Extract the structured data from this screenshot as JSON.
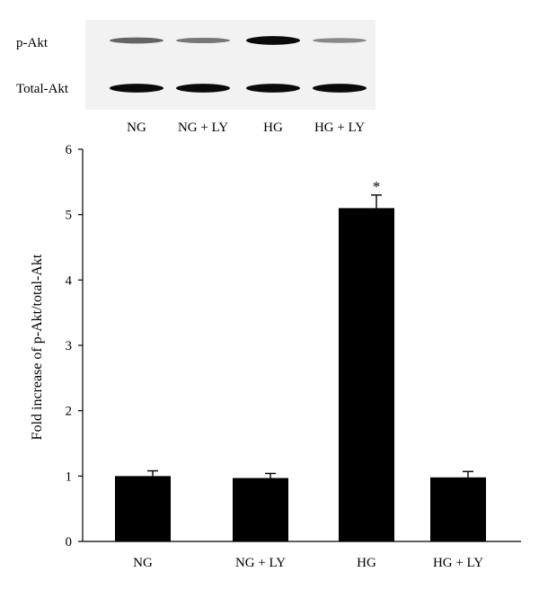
{
  "chart_data": {
    "type": "bar",
    "categories": [
      "NG",
      "NG + LY",
      "HG",
      "HG + LY"
    ],
    "values": [
      1.0,
      0.97,
      5.1,
      0.98
    ],
    "error": [
      0.08,
      0.07,
      0.2,
      0.09
    ],
    "significance": [
      "",
      "",
      "*",
      ""
    ],
    "ylabel": "Fold increase of p-Akt/total-Akt",
    "ylim": [
      0,
      6
    ],
    "yticks": [
      "0",
      "1",
      "2",
      "3",
      "4",
      "5",
      "6"
    ],
    "grid": false
  },
  "blot": {
    "bands": [
      {
        "label": "p-Akt",
        "intensity": [
          0.45,
          0.35,
          0.95,
          0.25
        ]
      },
      {
        "label": "Total-Akt",
        "intensity": [
          0.95,
          0.95,
          0.95,
          0.95
        ]
      }
    ],
    "lane_labels": [
      "NG",
      "NG + LY",
      "HG",
      "HG + LY"
    ]
  },
  "colors": {
    "bar": "#000000",
    "axis": "#000000",
    "blot_bg": "#f3f3f3",
    "band": "#000000"
  }
}
